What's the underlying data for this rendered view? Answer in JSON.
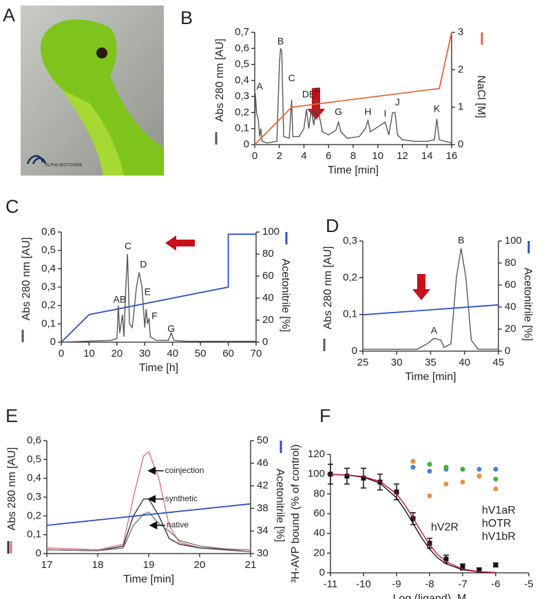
{
  "photo": {
    "panel": "A",
    "logo": "ALPHA BIOTOXINE"
  },
  "chart_data": [
    {
      "type": "line",
      "panel": "B",
      "xlabel": "Time [min]",
      "ylabel": "Abs 280 nm [AU]",
      "y2label": "NaCl [M]",
      "xlim": [
        0,
        16
      ],
      "xticks": [
        0,
        2,
        4,
        6,
        8,
        10,
        12,
        14,
        16
      ],
      "ylim": [
        0,
        0.7
      ],
      "yticks": [
        0,
        {
          "value": 0.1,
          "label": "0,1"
        },
        {
          "value": 0.2,
          "label": "0,2"
        },
        {
          "value": 0.3,
          "label": "0,3"
        },
        {
          "value": 0.4,
          "label": "0,4"
        },
        {
          "value": 0.5,
          "label": "0,5"
        },
        {
          "value": 0.6,
          "label": "0,6"
        },
        {
          "value": 0.7,
          "label": "0,7"
        }
      ],
      "y2lim": [
        0,
        3
      ],
      "y2ticks": [
        0,
        1,
        2,
        3
      ],
      "series": [
        {
          "color": "#555555",
          "x": [
            0,
            0.05,
            0.15,
            0.3,
            0.4,
            0.5,
            0.6,
            1,
            1.8,
            2.0,
            2.1,
            2.2,
            2.35,
            2.8,
            3.0,
            3.1,
            3.6,
            4.0,
            4.2,
            4.4,
            4.6,
            4.8,
            5.0,
            5.2,
            5.5,
            6,
            6.6,
            6.8,
            7.0,
            7.5,
            8.5,
            9.0,
            9.2,
            9.4,
            9.8,
            10.2,
            10.6,
            10.9,
            11.2,
            11.4,
            11.6,
            12,
            13,
            14,
            14.6,
            14.8,
            15.0,
            16
          ],
          "values": [
            0,
            0.32,
            0.2,
            0.15,
            0.05,
            0.1,
            0.02,
            0.01,
            0.02,
            0.5,
            0.6,
            0.58,
            0.05,
            0.04,
            0.28,
            0.05,
            0.05,
            0.1,
            0.22,
            0.1,
            0.22,
            0.12,
            0.28,
            0.2,
            0.08,
            0.06,
            0.09,
            0.14,
            0.08,
            0.04,
            0.05,
            0.1,
            0.15,
            0.08,
            0.1,
            0.12,
            0.14,
            0.06,
            0.2,
            0.2,
            0.06,
            0.03,
            0.02,
            0.02,
            0.03,
            0.16,
            0.03,
            0.01
          ]
        },
        {
          "color": "#e8643c",
          "axis": "y2",
          "x": [
            0,
            3,
            15,
            16
          ],
          "values": [
            0,
            1,
            1.5,
            3
          ]
        }
      ],
      "annotations": [
        {
          "text": "A",
          "x": 0.4,
          "y": 0.36
        },
        {
          "text": "B",
          "x": 2.1,
          "y": 0.64
        },
        {
          "text": "C",
          "x": 3.0,
          "y": 0.41
        },
        {
          "text": "DE",
          "x": 4.4,
          "y": 0.31
        },
        {
          "text": "F",
          "x": 5.1,
          "y": 0.33
        },
        {
          "text": "G",
          "x": 6.8,
          "y": 0.2
        },
        {
          "text": "H",
          "x": 9.2,
          "y": 0.2
        },
        {
          "text": "I",
          "x": 10.6,
          "y": 0.19
        },
        {
          "text": "J",
          "x": 11.6,
          "y": 0.26
        },
        {
          "text": "K",
          "x": 14.8,
          "y": 0.22
        }
      ]
    },
    {
      "type": "line",
      "panel": "C",
      "xlabel": "Time [h]",
      "ylabel": "Abs 280 nm [AU]",
      "y2label": "Acetonitrile [%]",
      "xlim": [
        0,
        70
      ],
      "xticks": [
        0,
        10,
        20,
        30,
        40,
        50,
        60,
        70
      ],
      "ylim": [
        0,
        0.6
      ],
      "yticks": [
        0,
        {
          "value": 0.1,
          "label": "0,1"
        },
        {
          "value": 0.2,
          "label": "0,2"
        },
        {
          "value": 0.3,
          "label": "0,3"
        },
        {
          "value": 0.4,
          "label": "0,4"
        },
        {
          "value": 0.5,
          "label": "0,5"
        },
        {
          "value": 0.6,
          "label": "0,6"
        }
      ],
      "y2lim": [
        0,
        100
      ],
      "y2ticks": [
        0,
        20,
        40,
        60,
        80,
        100
      ],
      "series": [
        {
          "color": "#555555",
          "x": [
            0,
            18,
            20,
            20.5,
            21,
            22,
            22.5,
            23.2,
            23.8,
            24.5,
            25.5,
            27,
            28,
            29,
            30,
            30.5,
            31,
            31.5,
            32,
            34,
            38.5,
            39.5,
            40.5,
            45,
            70
          ],
          "values": [
            0,
            0.01,
            0.02,
            0.2,
            0.05,
            0.15,
            0.03,
            0.3,
            0.48,
            0.1,
            0.08,
            0.3,
            0.38,
            0.3,
            0.08,
            0.18,
            0.1,
            0.13,
            0.03,
            0.01,
            0.01,
            0.05,
            0.01,
            0.005,
            0.005
          ]
        },
        {
          "color": "#2b4fc8",
          "axis": "y2",
          "x": [
            0,
            10,
            60,
            60,
            70
          ],
          "values": [
            0,
            25,
            50,
            98,
            98
          ]
        }
      ],
      "annotations": [
        {
          "text": "AB",
          "x": 21,
          "y": 0.23
        },
        {
          "text": "C",
          "x": 24,
          "y": 0.52
        },
        {
          "text": "D",
          "x": 29.5,
          "y": 0.42
        },
        {
          "text": "E",
          "x": 31,
          "y": 0.27
        },
        {
          "text": "F",
          "x": 33.5,
          "y": 0.14
        },
        {
          "text": "G",
          "x": 39.5,
          "y": 0.07
        }
      ]
    },
    {
      "type": "line",
      "panel": "D",
      "xlabel": "Time [min]",
      "ylabel": "Abs 280 nm [AU]",
      "y2label": "Acetonitrile [%]",
      "xlim": [
        25,
        45
      ],
      "xticks": [
        25,
        30,
        35,
        40,
        45
      ],
      "ylim": [
        0,
        0.3
      ],
      "yticks": [
        0,
        {
          "value": 0.1,
          "label": "0,1"
        },
        {
          "value": 0.2,
          "label": "0,2"
        },
        {
          "value": 0.3,
          "label": "0,3"
        }
      ],
      "y2lim": [
        0,
        100
      ],
      "y2ticks": [
        0,
        20,
        40,
        60,
        80,
        100
      ],
      "series": [
        {
          "color": "#555555",
          "x": [
            25,
            33,
            34.5,
            35.5,
            36.5,
            37,
            38,
            38.8,
            39.5,
            40.2,
            41,
            42,
            45
          ],
          "values": [
            0.005,
            0.005,
            0.02,
            0.035,
            0.03,
            0.01,
            0.02,
            0.2,
            0.28,
            0.2,
            0.03,
            0.005,
            0.005
          ]
        },
        {
          "color": "#2b4fc8",
          "axis": "y2",
          "x": [
            25,
            45
          ],
          "values": [
            33,
            42
          ]
        }
      ],
      "annotations": [
        {
          "text": "A",
          "x": 35.5,
          "y": 0.055
        },
        {
          "text": "B",
          "x": 39.5,
          "y": 0.3
        }
      ]
    },
    {
      "type": "line",
      "panel": "E",
      "xlabel": "Time [min]",
      "ylabel": "Abs 280 nm [AU]",
      "y2label": "Acetonitrile [%]",
      "xlim": [
        17,
        21
      ],
      "xticks": [
        17,
        18,
        19,
        20,
        21
      ],
      "ylim": [
        0,
        0.6
      ],
      "yticks": [
        0,
        {
          "value": 0.1,
          "label": "0,1"
        },
        {
          "value": 0.2,
          "label": "0,2"
        },
        {
          "value": 0.3,
          "label": "0,3"
        },
        {
          "value": 0.4,
          "label": "0,4"
        },
        {
          "value": 0.5,
          "label": "0,5"
        },
        {
          "value": 0.6,
          "label": "0,6"
        }
      ],
      "y2lim": [
        30,
        50
      ],
      "y2ticks": [
        30,
        34,
        38,
        42,
        46,
        50
      ],
      "series": [
        {
          "color": "#e07080",
          "x": [
            17,
            18,
            18.5,
            18.7,
            18.9,
            19.0,
            19.2,
            19.4,
            19.6,
            20,
            21
          ],
          "values": [
            0.03,
            0.02,
            0.05,
            0.3,
            0.52,
            0.54,
            0.4,
            0.15,
            0.06,
            0.03,
            0.02
          ]
        },
        {
          "color": "#333333",
          "x": [
            17,
            18,
            18.5,
            18.7,
            18.9,
            19.0,
            19.2,
            19.4,
            19.6,
            20,
            21
          ],
          "values": [
            0.02,
            0.015,
            0.04,
            0.2,
            0.29,
            0.29,
            0.2,
            0.08,
            0.05,
            0.03,
            0.01
          ]
        },
        {
          "color": "#777777",
          "x": [
            17,
            18,
            18.5,
            18.7,
            18.9,
            19.0,
            19.2,
            19.4,
            19.6,
            20,
            21
          ],
          "values": [
            0.02,
            0.015,
            0.03,
            0.15,
            0.21,
            0.22,
            0.16,
            0.12,
            0.07,
            0.04,
            0.01
          ]
        },
        {
          "color": "#2b4fc8",
          "axis": "y2",
          "x": [
            17,
            21
          ],
          "values": [
            35,
            38.8
          ]
        }
      ],
      "annotations": [
        {
          "text": "coinjection",
          "x": 19.32,
          "y": 0.44
        },
        {
          "text": "synthetic",
          "x": 19.32,
          "y": 0.29
        },
        {
          "text": "native",
          "x": 19.35,
          "y": 0.15
        }
      ]
    },
    {
      "type": "scatter",
      "panel": "F",
      "xlabel": "Log (ligand), M",
      "ylabel": "³H-AVP bound (% of control)",
      "xlim": [
        -11,
        -5
      ],
      "xticks": [
        -11,
        -10,
        -9,
        -8,
        -7,
        -6,
        -5
      ],
      "ylim": [
        0,
        120
      ],
      "yticks": [
        0,
        20,
        40,
        60,
        80,
        100,
        120
      ],
      "series": [
        {
          "name": "hV1aR",
          "color": "#4a7fd4",
          "x": [
            -8.5,
            -8,
            -7.5,
            -7,
            -6.5,
            -6
          ],
          "values": [
            107,
            103,
            105,
            105,
            105,
            105
          ]
        },
        {
          "name": "hOTR",
          "color": "#3cb43c",
          "x": [
            -8.5,
            -8,
            -7.5,
            -7,
            -6.5,
            -6
          ],
          "values": [
            113,
            110,
            107,
            105,
            98,
            95
          ]
        },
        {
          "name": "hV1bR",
          "color": "#f08c3c",
          "x": [
            -8.5,
            -8,
            -7.5,
            -7,
            -6.5,
            -6
          ],
          "values": [
            113,
            78,
            90,
            92,
            98,
            85
          ]
        },
        {
          "color": "#111111",
          "x": [
            -11,
            -10.5,
            -10,
            -9.5,
            -9,
            -8.5,
            -8,
            -7.5,
            -7,
            -6.5,
            -6
          ],
          "values": [
            100,
            98,
            96,
            92,
            82,
            55,
            30,
            14,
            6,
            3,
            8
          ],
          "errors": [
            10,
            8,
            10,
            8,
            8,
            6,
            5,
            4,
            3,
            2,
            2
          ]
        },
        {
          "type": "line",
          "color": "#111111",
          "x": [
            -11,
            -10.5,
            -10,
            -9.5,
            -9,
            -8.75,
            -8.5,
            -8.25,
            -8,
            -7.75,
            -7.5,
            -7,
            -6.5,
            -6
          ],
          "values": [
            99.7,
            99,
            96.9,
            90.9,
            76,
            64,
            50,
            36,
            24,
            15,
            9.1,
            3.1,
            1,
            0.3
          ]
        },
        {
          "type": "line",
          "name": "hV2R",
          "color": "#c8102e",
          "x": [
            -11,
            -10.5,
            -10,
            -9.5,
            -9,
            -8.75,
            -8.5,
            -8.25,
            -8,
            -7.75,
            -7.5,
            -7,
            -6.5,
            -6
          ],
          "values": [
            99.7,
            99.2,
            97.5,
            92.6,
            80,
            69,
            55.7,
            41.5,
            28.5,
            18.3,
            11.2,
            3.8,
            1.2,
            0.4
          ]
        }
      ]
    }
  ]
}
